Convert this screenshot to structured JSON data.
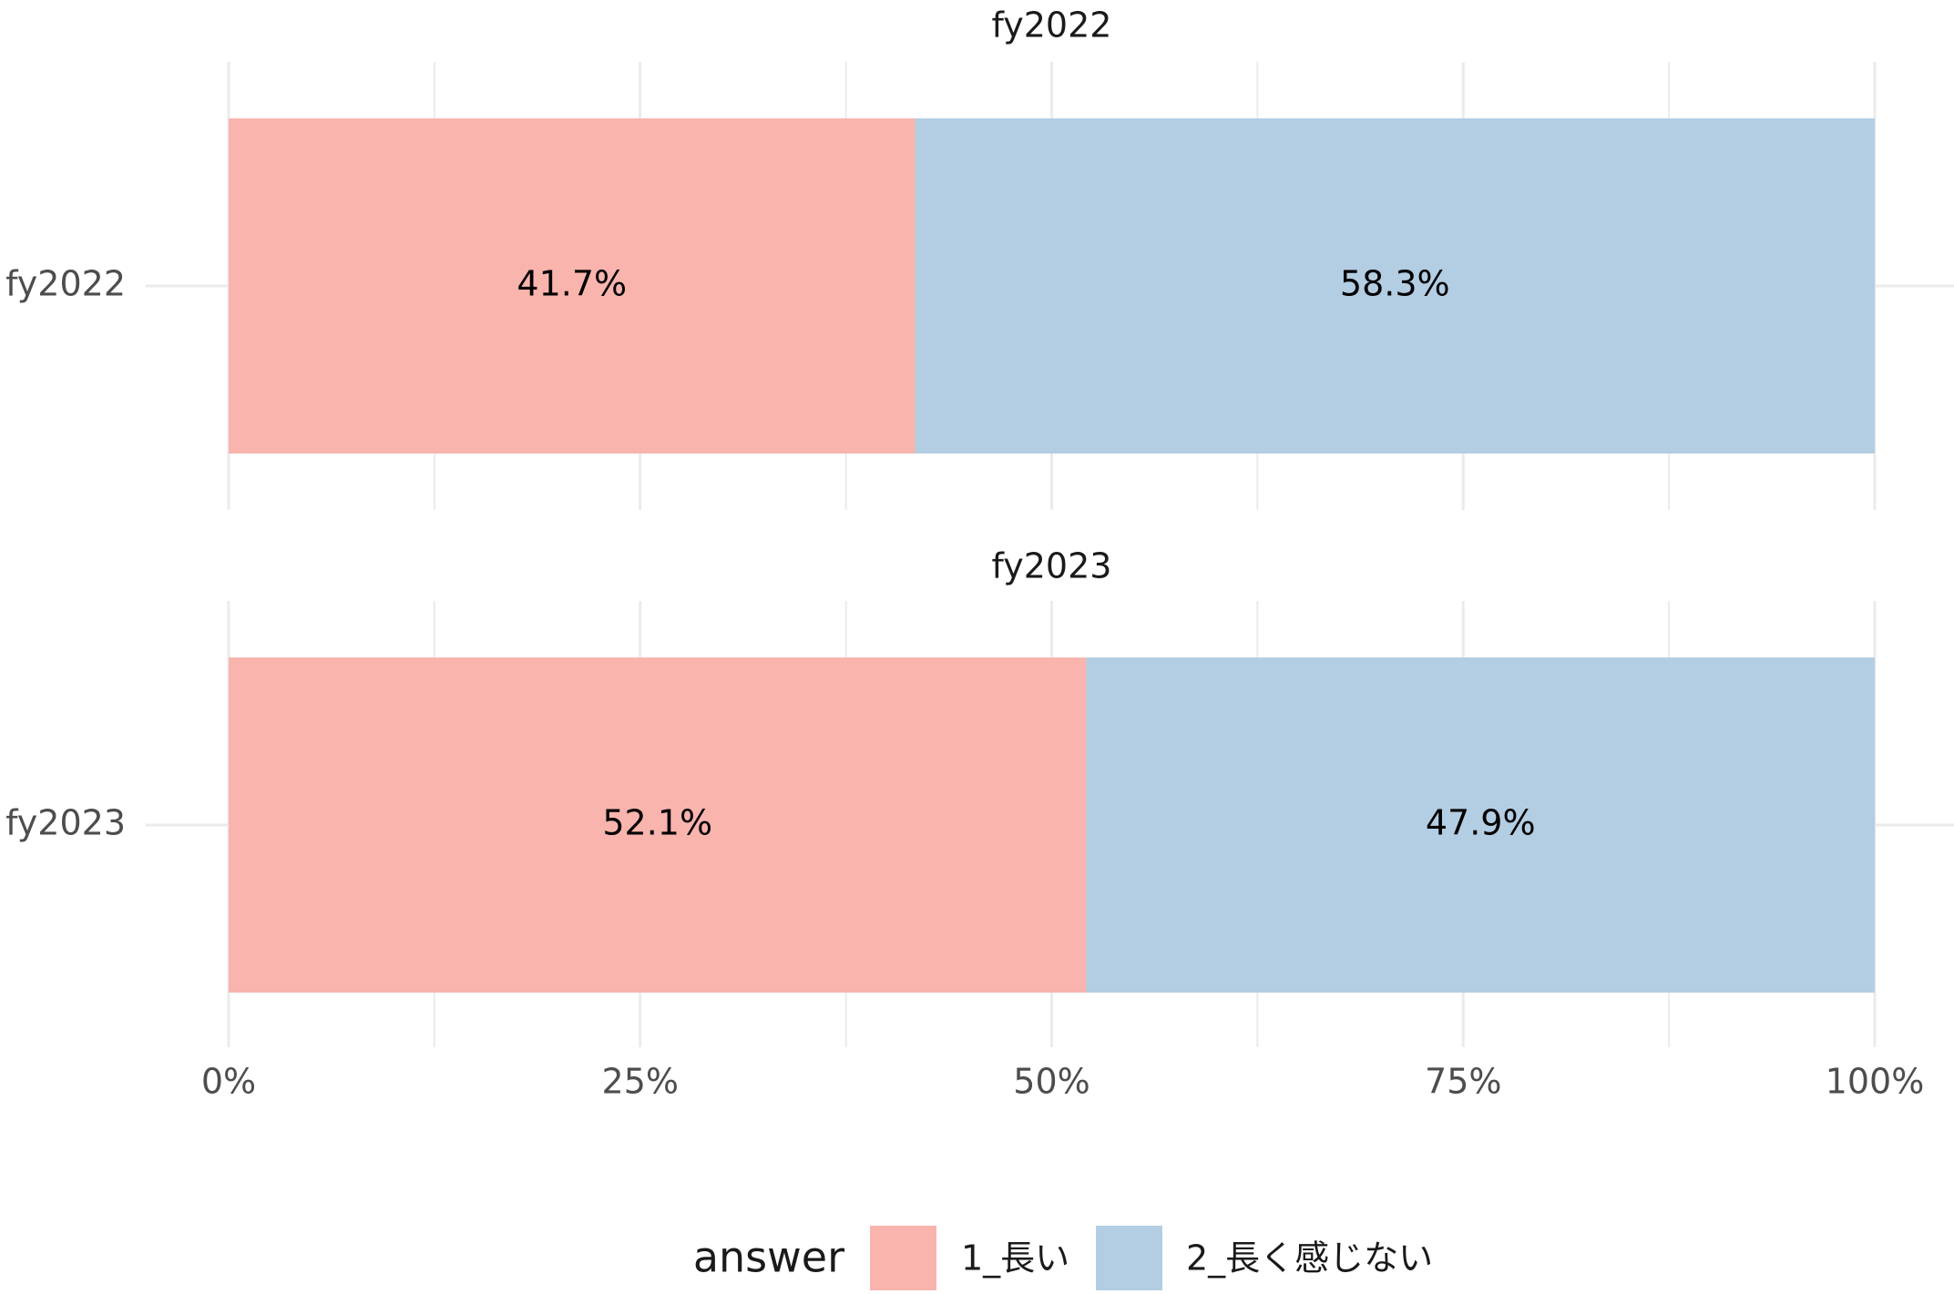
{
  "chart_data": {
    "type": "bar",
    "orientation": "horizontal",
    "stacked": true,
    "facets": [
      {
        "strip_label": "fy2022",
        "category": "fy2022",
        "segments": [
          {
            "answer": "1_長い",
            "value": 41.7,
            "label": "41.7%"
          },
          {
            "answer": "2_長く感じない",
            "value": 58.3,
            "label": "58.3%"
          }
        ]
      },
      {
        "strip_label": "fy2023",
        "category": "fy2023",
        "segments": [
          {
            "answer": "1_長い",
            "value": 52.1,
            "label": "52.1%"
          },
          {
            "answer": "2_長く感じない",
            "value": 47.9,
            "label": "47.9%"
          }
        ]
      }
    ],
    "x_ticks": [
      0,
      25,
      50,
      75,
      100
    ],
    "x_tick_labels": [
      "0%",
      "25%",
      "50%",
      "75%",
      "100%"
    ],
    "xlim": [
      0,
      100
    ],
    "grid": true,
    "legend": {
      "title": "answer",
      "position": "bottom",
      "items": [
        {
          "label": "1_長い",
          "color": "#F9B4AE"
        },
        {
          "label": "2_長く感じない",
          "color": "#B3CDE3"
        }
      ]
    },
    "colors": {
      "1_長い": "#F9B4AE",
      "2_長く感じない": "#B3CDE3"
    }
  }
}
